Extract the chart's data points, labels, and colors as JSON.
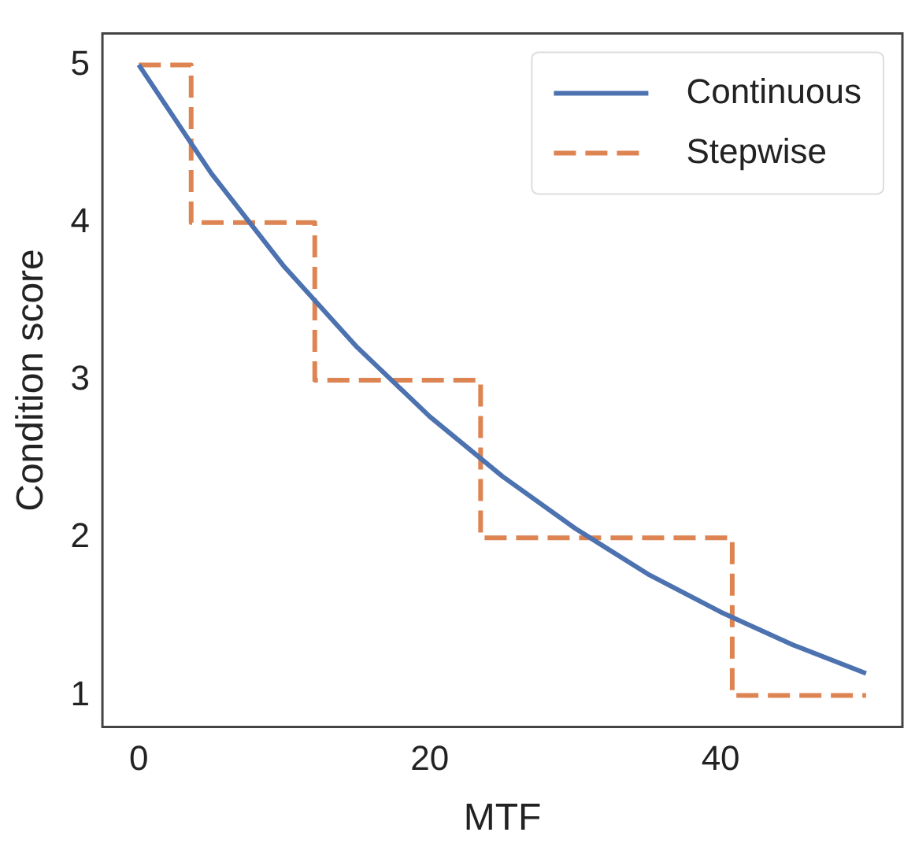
{
  "chart_data": {
    "type": "line",
    "xlabel": "MTF",
    "ylabel": "Condition score",
    "xlim": [
      -2.5,
      52.5
    ],
    "xticks": [
      0,
      20,
      40
    ],
    "ylim": [
      0.8,
      5.2
    ],
    "yticks": [
      1,
      2,
      3,
      4,
      5
    ],
    "grid": false,
    "legend": "top right",
    "marker": "none",
    "series": [
      {
        "name": "Continuous",
        "type": "line",
        "color": "#4c72b0",
        "line_style": "solid",
        "x": [
          0,
          5,
          10,
          15,
          20,
          25,
          30,
          35,
          40,
          45,
          50
        ],
        "values": [
          5,
          4.31,
          3.72,
          3.21,
          2.77,
          2.39,
          2.06,
          1.77,
          1.53,
          1.32,
          1.14
        ]
      },
      {
        "name": "Stepwise",
        "type": "step",
        "color": "#dd8452",
        "line_style": "dashed",
        "x": [
          0,
          3.6,
          12.1,
          23.5,
          40.8,
          50
        ],
        "values": [
          5,
          4,
          3,
          2,
          1,
          1
        ]
      }
    ]
  }
}
